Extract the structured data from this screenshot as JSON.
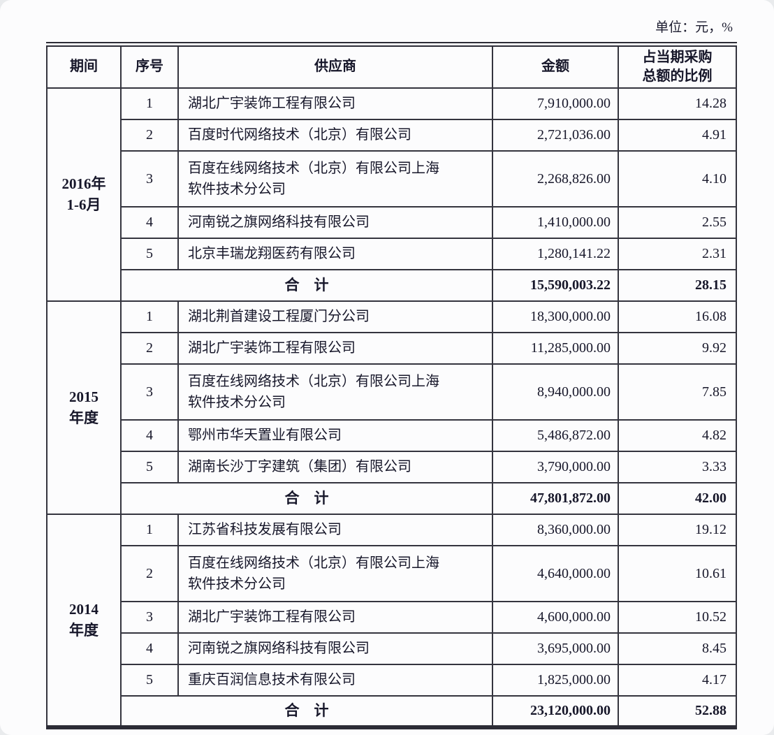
{
  "meta": {
    "unit_label": "单位：元，%"
  },
  "table": {
    "headers": {
      "period": "期间",
      "index": "序号",
      "supplier": "供应商",
      "amount": "金额",
      "ratio_line1": "占当期采购",
      "ratio_line2": "总额的比例"
    },
    "total_label": "合　计",
    "sections": [
      {
        "period_lines": [
          "2016年",
          "1-6月"
        ],
        "rows": [
          {
            "index": "1",
            "supplier": "湖北广宇装饰工程有限公司",
            "amount": "7,910,000.00",
            "ratio": "14.28",
            "tall": false
          },
          {
            "index": "2",
            "supplier": "百度时代网络技术（北京）有限公司",
            "amount": "2,721,036.00",
            "ratio": "4.91",
            "tall": false
          },
          {
            "index": "3",
            "supplier": "百度在线网络技术（北京）有限公司上海\n软件技术分公司",
            "amount": "2,268,826.00",
            "ratio": "4.10",
            "tall": true
          },
          {
            "index": "4",
            "supplier": "河南锐之旗网络科技有限公司",
            "amount": "1,410,000.00",
            "ratio": "2.55",
            "tall": false
          },
          {
            "index": "5",
            "supplier": "北京丰瑞龙翔医药有限公司",
            "amount": "1,280,141.22",
            "ratio": "2.31",
            "tall": false
          }
        ],
        "total": {
          "amount": "15,590,003.22",
          "ratio": "28.15"
        }
      },
      {
        "period_lines": [
          "2015",
          "年度"
        ],
        "rows": [
          {
            "index": "1",
            "supplier": "湖北荆首建设工程厦门分公司",
            "amount": "18,300,000.00",
            "ratio": "16.08",
            "tall": false
          },
          {
            "index": "2",
            "supplier": "湖北广宇装饰工程有限公司",
            "amount": "11,285,000.00",
            "ratio": "9.92",
            "tall": false
          },
          {
            "index": "3",
            "supplier": "百度在线网络技术（北京）有限公司上海\n软件技术分公司",
            "amount": "8,940,000.00",
            "ratio": "7.85",
            "tall": true
          },
          {
            "index": "4",
            "supplier": "鄂州市华天置业有限公司",
            "amount": "5,486,872.00",
            "ratio": "4.82",
            "tall": false
          },
          {
            "index": "5",
            "supplier": "湖南长沙丁字建筑（集团）有限公司",
            "amount": "3,790,000.00",
            "ratio": "3.33",
            "tall": false
          }
        ],
        "total": {
          "amount": "47,801,872.00",
          "ratio": "42.00"
        }
      },
      {
        "period_lines": [
          "2014",
          "年度"
        ],
        "rows": [
          {
            "index": "1",
            "supplier": "江苏省科技发展有限公司",
            "amount": "8,360,000.00",
            "ratio": "19.12",
            "tall": false
          },
          {
            "index": "2",
            "supplier": "百度在线网络技术（北京）有限公司上海\n软件技术分公司",
            "amount": "4,640,000.00",
            "ratio": "10.61",
            "tall": true
          },
          {
            "index": "3",
            "supplier": "湖北广宇装饰工程有限公司",
            "amount": "4,600,000.00",
            "ratio": "10.52",
            "tall": false
          },
          {
            "index": "4",
            "supplier": "河南锐之旗网络科技有限公司",
            "amount": "3,695,000.00",
            "ratio": "8.45",
            "tall": false
          },
          {
            "index": "5",
            "supplier": "重庆百润信息技术有限公司",
            "amount": "1,825,000.00",
            "ratio": "4.17",
            "tall": false
          }
        ],
        "total": {
          "amount": "23,120,000.00",
          "ratio": "52.88"
        }
      }
    ]
  }
}
